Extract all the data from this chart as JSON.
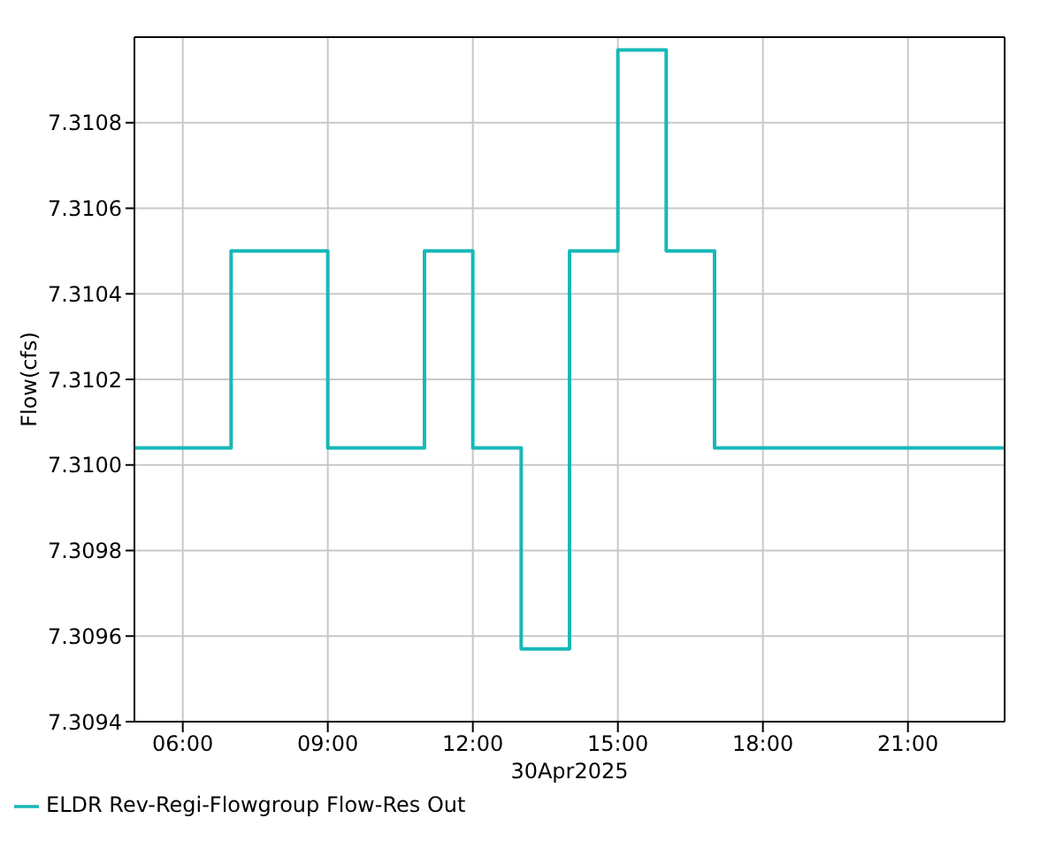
{
  "chart_data": {
    "type": "step",
    "xlabel": "30Apr2025",
    "ylabel": "Flow(cfs)",
    "x": [
      5,
      6,
      7,
      8,
      9,
      10,
      11,
      12,
      13,
      14,
      15,
      16,
      17,
      18,
      19,
      20,
      21,
      22,
      23
    ],
    "series": [
      {
        "name": "ELDR Rev-Regi-Flowgroup Flow-Res Out",
        "color": "#17b8b8",
        "values": [
          7.31004,
          7.31004,
          7.3105,
          7.3105,
          7.31004,
          7.31004,
          7.3105,
          7.31004,
          7.30957,
          7.3105,
          7.31097,
          7.3105,
          7.31004,
          7.31004,
          7.31004,
          7.31004,
          7.31004,
          7.31004,
          7.31004
        ]
      }
    ],
    "xlim": [
      5,
      23
    ],
    "xticks": [
      {
        "value": 6,
        "label": "06:00"
      },
      {
        "value": 9,
        "label": "09:00"
      },
      {
        "value": 12,
        "label": "12:00"
      },
      {
        "value": 15,
        "label": "15:00"
      },
      {
        "value": 18,
        "label": "18:00"
      },
      {
        "value": 21,
        "label": "21:00"
      }
    ],
    "ylim": [
      7.3094,
      7.311
    ],
    "yticks": [
      {
        "value": 7.3094,
        "label": "7.3094"
      },
      {
        "value": 7.3096,
        "label": "7.3096"
      },
      {
        "value": 7.3098,
        "label": "7.3098"
      },
      {
        "value": 7.31,
        "label": "7.3100"
      },
      {
        "value": 7.3102,
        "label": "7.3102"
      },
      {
        "value": 7.3104,
        "label": "7.3104"
      },
      {
        "value": 7.3106,
        "label": "7.3106"
      },
      {
        "value": 7.3108,
        "label": "7.3108"
      }
    ],
    "grid": true,
    "legend": "bottom",
    "marker": "none",
    "line_style": "solid"
  }
}
